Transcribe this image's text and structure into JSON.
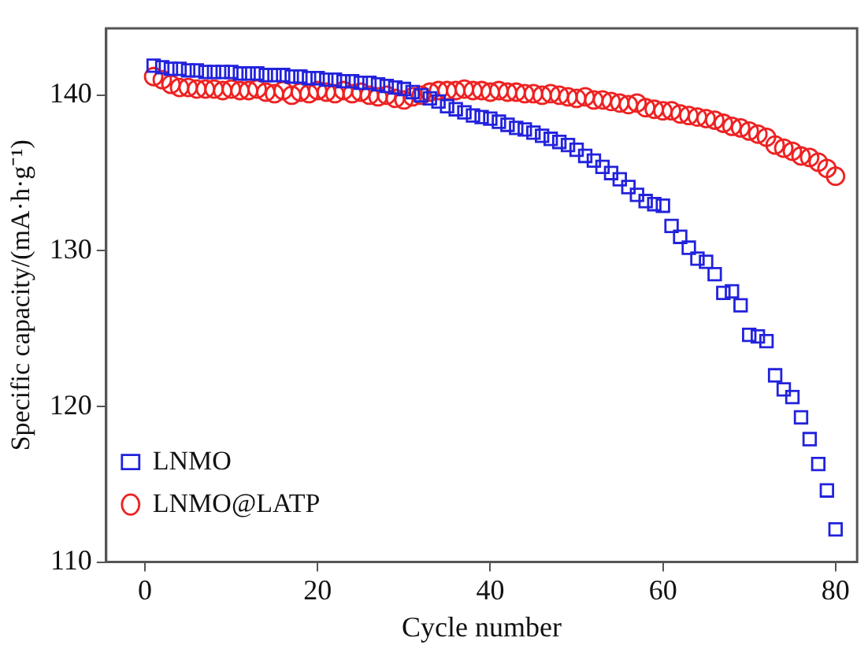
{
  "chart_data": {
    "type": "scatter",
    "xlabel": "Cycle number",
    "ylabel": "Specific capacity/(mA·h·g⁻¹)",
    "xlim": [
      -4.5,
      82.5
    ],
    "xticks": [
      0,
      20,
      40,
      60,
      80
    ],
    "ylim": [
      110,
      144.3
    ],
    "yticks": [
      110,
      120,
      130,
      140
    ],
    "grid": false,
    "legend": "bottom left",
    "series": [
      {
        "name": "LNMO",
        "color": "#2222dd",
        "marker": "square",
        "x": [
          1,
          2,
          3,
          4,
          5,
          6,
          7,
          8,
          9,
          10,
          11,
          12,
          13,
          14,
          15,
          16,
          17,
          18,
          19,
          20,
          21,
          22,
          23,
          24,
          25,
          26,
          27,
          28,
          29,
          30,
          31,
          32,
          33,
          34,
          35,
          36,
          37,
          38,
          39,
          40,
          41,
          42,
          43,
          44,
          45,
          46,
          47,
          48,
          49,
          50,
          51,
          52,
          53,
          54,
          55,
          56,
          57,
          58,
          59,
          60,
          61,
          62,
          63,
          64,
          65,
          66,
          67,
          68,
          69,
          70,
          71,
          72,
          73,
          74,
          75,
          76,
          77,
          78,
          79,
          80
        ],
        "values": [
          141.9,
          141.8,
          141.7,
          141.7,
          141.6,
          141.6,
          141.5,
          141.5,
          141.5,
          141.5,
          141.4,
          141.4,
          141.4,
          141.3,
          141.3,
          141.3,
          141.2,
          141.2,
          141.1,
          141.1,
          141.0,
          141.0,
          140.9,
          140.9,
          140.8,
          140.8,
          140.7,
          140.6,
          140.5,
          140.4,
          140.2,
          140.0,
          139.8,
          139.6,
          139.3,
          139.1,
          138.9,
          138.7,
          138.6,
          138.5,
          138.3,
          138.1,
          137.9,
          137.8,
          137.6,
          137.4,
          137.2,
          137.0,
          136.8,
          136.5,
          136.1,
          135.8,
          135.4,
          135.0,
          134.6,
          134.1,
          133.6,
          133.2,
          133.0,
          132.9,
          131.6,
          130.9,
          130.2,
          129.5,
          129.3,
          128.5,
          127.3,
          127.4,
          126.5,
          124.6,
          124.5,
          124.2,
          122.0,
          121.1,
          120.6,
          119.3,
          117.9,
          116.3,
          114.6,
          112.1
        ]
      },
      {
        "name": "LNMO@LATP",
        "color": "#ee2222",
        "marker": "circle",
        "x": [
          1,
          2,
          3,
          4,
          5,
          6,
          7,
          8,
          9,
          10,
          11,
          12,
          13,
          14,
          15,
          16,
          17,
          18,
          19,
          20,
          21,
          22,
          23,
          24,
          25,
          26,
          27,
          28,
          29,
          30,
          31,
          32,
          33,
          34,
          35,
          36,
          37,
          38,
          39,
          40,
          41,
          42,
          43,
          44,
          45,
          46,
          47,
          48,
          49,
          50,
          51,
          52,
          53,
          54,
          55,
          56,
          57,
          58,
          59,
          60,
          61,
          62,
          63,
          64,
          65,
          66,
          67,
          68,
          69,
          70,
          71,
          72,
          73,
          74,
          75,
          76,
          77,
          78,
          79,
          80
        ],
        "values": [
          141.2,
          141.0,
          140.7,
          140.5,
          140.5,
          140.4,
          140.4,
          140.4,
          140.3,
          140.4,
          140.3,
          140.3,
          140.4,
          140.2,
          140.1,
          140.3,
          140.0,
          140.2,
          140.1,
          140.3,
          140.2,
          140.1,
          140.3,
          140.1,
          140.2,
          140.0,
          139.9,
          140.0,
          139.8,
          139.7,
          139.9,
          140.0,
          140.2,
          140.3,
          140.3,
          140.3,
          140.4,
          140.3,
          140.3,
          140.2,
          140.3,
          140.2,
          140.2,
          140.1,
          140.1,
          140.0,
          140.1,
          140.0,
          139.9,
          139.8,
          139.9,
          139.7,
          139.7,
          139.6,
          139.5,
          139.4,
          139.5,
          139.2,
          139.1,
          139.0,
          139.0,
          138.8,
          138.7,
          138.6,
          138.5,
          138.4,
          138.2,
          138.0,
          137.9,
          137.7,
          137.5,
          137.3,
          136.8,
          136.6,
          136.4,
          136.1,
          136.0,
          135.7,
          135.3,
          134.8
        ]
      }
    ]
  }
}
